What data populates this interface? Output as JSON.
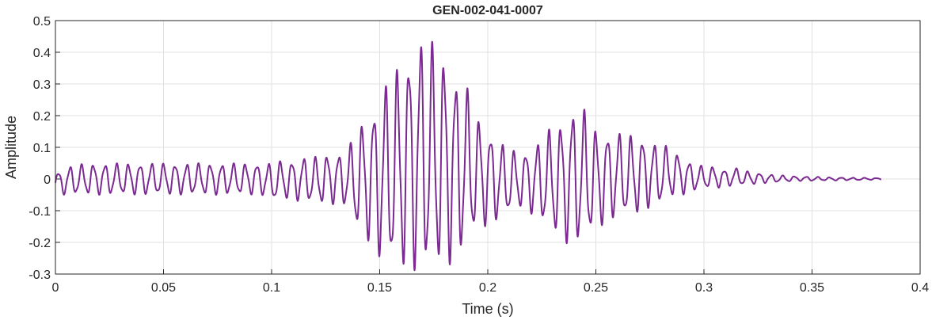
{
  "chart_data": {
    "type": "line",
    "title": "GEN-002-041-0007",
    "xlabel": "Time (s)",
    "ylabel": "Amplitude",
    "xlim": [
      0,
      0.4
    ],
    "ylim": [
      -0.3,
      0.5
    ],
    "xticks": [
      0,
      0.05,
      0.1,
      0.15,
      0.2,
      0.25,
      0.3,
      0.35,
      0.4
    ],
    "xtick_labels": [
      "0",
      "0.05",
      "0.1",
      "0.15",
      "0.2",
      "0.25",
      "0.3",
      "0.35",
      "0.4"
    ],
    "yticks": [
      -0.3,
      -0.2,
      -0.1,
      0,
      0.1,
      0.2,
      0.3,
      0.4,
      0.5
    ],
    "ytick_labels": [
      "-0.3",
      "-0.2",
      "-0.1",
      "0",
      "0.1",
      "0.2",
      "0.3",
      "0.4",
      "0.5"
    ],
    "grid": true,
    "line_color": "#7b2a91",
    "series": [
      {
        "x": [
          0,
          0.005,
          0.01,
          0.015,
          0.02,
          0.025,
          0.03,
          0.035,
          0.04,
          0.045,
          0.05,
          0.055,
          0.06,
          0.065,
          0.07,
          0.075,
          0.08,
          0.085,
          0.09,
          0.095,
          0.1,
          0.105,
          0.11,
          0.115,
          0.12,
          0.125,
          0.13,
          0.135,
          0.14,
          0.145,
          0.15,
          0.155,
          0.16,
          0.165,
          0.17,
          0.175,
          0.18,
          0.185,
          0.19,
          0.195,
          0.2,
          0.205,
          0.21,
          0.215,
          0.22,
          0.225,
          0.23,
          0.235,
          0.24,
          0.245,
          0.25,
          0.255,
          0.26,
          0.265,
          0.27,
          0.275,
          0.28,
          0.285,
          0.29,
          0.295,
          0.3,
          0.305,
          0.31,
          0.315,
          0.32,
          0.325,
          0.33,
          0.335,
          0.34,
          0.345,
          0.35,
          0.355,
          0.36,
          0.365,
          0.37,
          0.375,
          0.382
        ],
        "y_upper": [
          0.02,
          0.04,
          0.045,
          0.05,
          0.05,
          0.05,
          0.05,
          0.05,
          0.05,
          0.05,
          0.05,
          0.05,
          0.05,
          0.05,
          0.05,
          0.05,
          0.05,
          0.05,
          0.05,
          0.05,
          0.05,
          0.06,
          0.06,
          0.07,
          0.07,
          0.08,
          0.08,
          0.09,
          0.17,
          0.2,
          0.27,
          0.33,
          0.37,
          0.42,
          0.46,
          0.43,
          0.4,
          0.33,
          0.3,
          0.2,
          0.16,
          0.12,
          0.1,
          0.08,
          0.1,
          0.13,
          0.17,
          0.19,
          0.23,
          0.22,
          0.16,
          0.15,
          0.15,
          0.14,
          0.14,
          0.12,
          0.11,
          0.1,
          0.07,
          0.05,
          0.04,
          0.04,
          0.03,
          0.035,
          0.025,
          0.02,
          0.015,
          0.012,
          0.01,
          0.008,
          0.008,
          0.006,
          0.005,
          0.005,
          0.004,
          0.004,
          0.003
        ],
        "y_lower": [
          -0.05,
          -0.05,
          -0.05,
          -0.05,
          -0.05,
          -0.05,
          -0.05,
          -0.05,
          -0.05,
          -0.05,
          -0.05,
          -0.05,
          -0.05,
          -0.05,
          -0.05,
          -0.05,
          -0.05,
          -0.05,
          -0.05,
          -0.05,
          -0.07,
          -0.06,
          -0.07,
          -0.07,
          -0.08,
          -0.08,
          -0.08,
          -0.09,
          -0.17,
          -0.2,
          -0.26,
          -0.28,
          -0.29,
          -0.29,
          -0.3,
          -0.29,
          -0.28,
          -0.26,
          -0.22,
          -0.16,
          -0.15,
          -0.13,
          -0.11,
          -0.09,
          -0.11,
          -0.14,
          -0.17,
          -0.2,
          -0.21,
          -0.2,
          -0.16,
          -0.14,
          -0.12,
          -0.12,
          -0.11,
          -0.09,
          -0.08,
          -0.06,
          -0.05,
          -0.04,
          -0.03,
          -0.03,
          -0.025,
          -0.02,
          -0.02,
          -0.015,
          -0.012,
          -0.01,
          -0.008,
          -0.006,
          -0.006,
          -0.005,
          -0.005,
          -0.004,
          -0.004,
          -0.003,
          -0.002
        ],
        "oscillation_frequency_hz": 185
      }
    ]
  }
}
